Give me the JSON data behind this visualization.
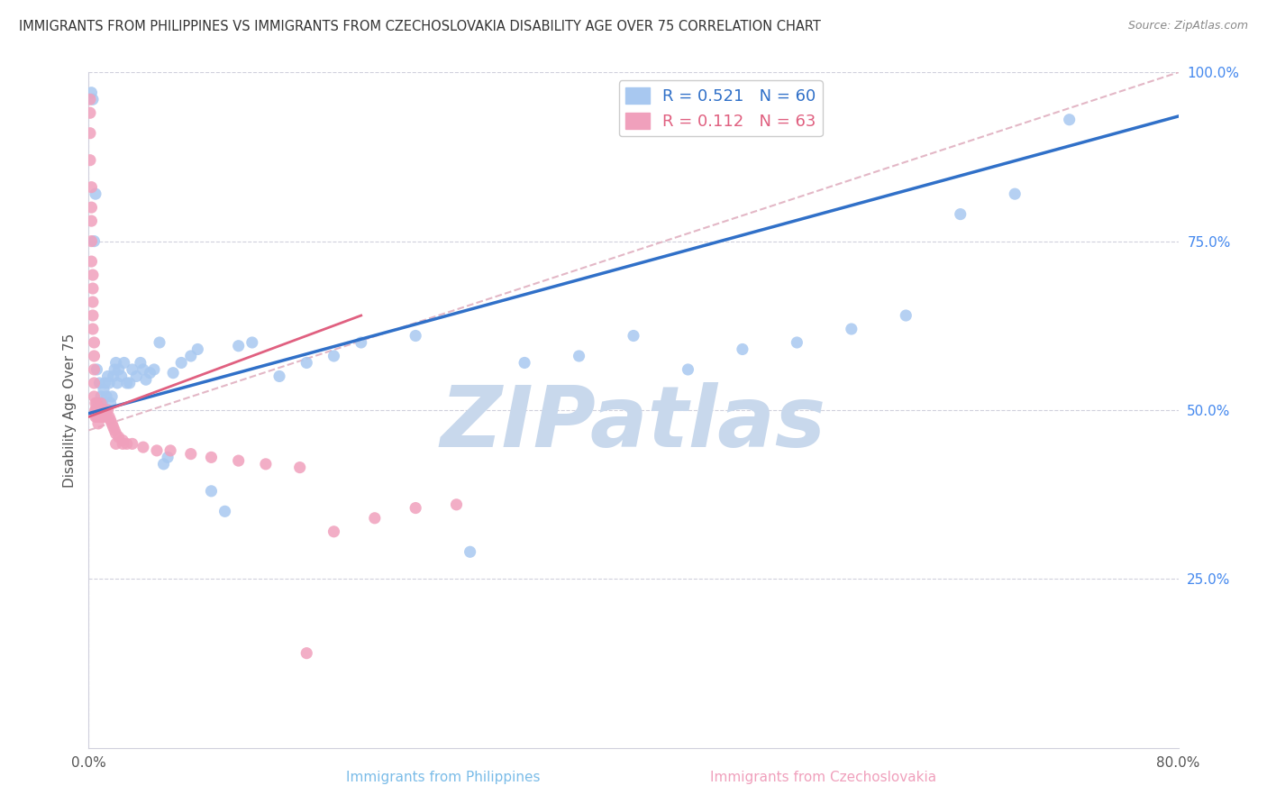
{
  "title": "IMMIGRANTS FROM PHILIPPINES VS IMMIGRANTS FROM CZECHOSLOVAKIA DISABILITY AGE OVER 75 CORRELATION CHART",
  "source": "Source: ZipAtlas.com",
  "xlabel_bottom": "Immigrants from Philippines",
  "xlabel2_bottom": "Immigrants from Czechoslovakia",
  "ylabel": "Disability Age Over 75",
  "legend_blue_R": "R = 0.521",
  "legend_blue_N": "N = 60",
  "legend_pink_R": "R = 0.112",
  "legend_pink_N": "N = 63",
  "blue_color": "#A8C8F0",
  "pink_color": "#F0A0BC",
  "blue_line_color": "#3070C8",
  "pink_line_color": "#E06080",
  "dashed_line_color": "#E0B0C0",
  "background_color": "#FFFFFF",
  "watermark_color": "#C8D8EC",
  "watermark_text": "ZIPatlas",
  "xlim": [
    0.0,
    0.8
  ],
  "ylim": [
    0.0,
    1.0
  ],
  "blue_line_x0": 0.0,
  "blue_line_y0": 0.495,
  "blue_line_x1": 0.8,
  "blue_line_y1": 0.935,
  "pink_line_x0": 0.0,
  "pink_line_y0": 0.49,
  "pink_line_x1": 0.2,
  "pink_line_y1": 0.64,
  "dash_line_x0": 0.2,
  "dash_line_y0": 0.6,
  "dash_line_x1": 0.8,
  "dash_line_y1": 1.0,
  "blue_x": [
    0.002,
    0.003,
    0.004,
    0.005,
    0.006,
    0.007,
    0.008,
    0.009,
    0.01,
    0.011,
    0.012,
    0.013,
    0.014,
    0.015,
    0.016,
    0.017,
    0.018,
    0.019,
    0.02,
    0.021,
    0.022,
    0.024,
    0.026,
    0.028,
    0.03,
    0.032,
    0.035,
    0.038,
    0.04,
    0.042,
    0.045,
    0.048,
    0.052,
    0.055,
    0.058,
    0.062,
    0.068,
    0.075,
    0.08,
    0.09,
    0.1,
    0.11,
    0.12,
    0.14,
    0.16,
    0.18,
    0.2,
    0.24,
    0.28,
    0.32,
    0.36,
    0.4,
    0.44,
    0.48,
    0.52,
    0.56,
    0.6,
    0.64,
    0.68,
    0.72
  ],
  "blue_y": [
    0.97,
    0.96,
    0.75,
    0.82,
    0.56,
    0.51,
    0.54,
    0.52,
    0.51,
    0.53,
    0.54,
    0.52,
    0.55,
    0.54,
    0.51,
    0.52,
    0.55,
    0.56,
    0.57,
    0.54,
    0.56,
    0.55,
    0.57,
    0.54,
    0.54,
    0.56,
    0.55,
    0.57,
    0.56,
    0.545,
    0.555,
    0.56,
    0.6,
    0.42,
    0.43,
    0.555,
    0.57,
    0.58,
    0.59,
    0.38,
    0.35,
    0.595,
    0.6,
    0.55,
    0.57,
    0.58,
    0.6,
    0.61,
    0.29,
    0.57,
    0.58,
    0.61,
    0.56,
    0.59,
    0.6,
    0.62,
    0.64,
    0.79,
    0.82,
    0.93
  ],
  "pink_x": [
    0.001,
    0.001,
    0.001,
    0.001,
    0.002,
    0.002,
    0.002,
    0.002,
    0.002,
    0.003,
    0.003,
    0.003,
    0.003,
    0.003,
    0.004,
    0.004,
    0.004,
    0.004,
    0.004,
    0.005,
    0.005,
    0.005,
    0.005,
    0.006,
    0.006,
    0.006,
    0.007,
    0.007,
    0.008,
    0.008,
    0.009,
    0.009,
    0.01,
    0.01,
    0.011,
    0.012,
    0.013,
    0.014,
    0.015,
    0.016,
    0.017,
    0.018,
    0.019,
    0.02,
    0.022,
    0.025,
    0.028,
    0.032,
    0.04,
    0.05,
    0.06,
    0.075,
    0.09,
    0.11,
    0.13,
    0.155,
    0.18,
    0.21,
    0.24,
    0.27,
    0.02,
    0.025,
    0.16
  ],
  "pink_y": [
    0.96,
    0.94,
    0.91,
    0.87,
    0.83,
    0.8,
    0.78,
    0.75,
    0.72,
    0.7,
    0.68,
    0.66,
    0.64,
    0.62,
    0.6,
    0.58,
    0.56,
    0.54,
    0.52,
    0.51,
    0.5,
    0.49,
    0.5,
    0.51,
    0.49,
    0.5,
    0.49,
    0.48,
    0.5,
    0.495,
    0.49,
    0.51,
    0.5,
    0.49,
    0.5,
    0.49,
    0.495,
    0.5,
    0.49,
    0.485,
    0.48,
    0.475,
    0.47,
    0.465,
    0.46,
    0.455,
    0.45,
    0.45,
    0.445,
    0.44,
    0.44,
    0.435,
    0.43,
    0.425,
    0.42,
    0.415,
    0.32,
    0.34,
    0.355,
    0.36,
    0.45,
    0.45,
    0.14
  ]
}
